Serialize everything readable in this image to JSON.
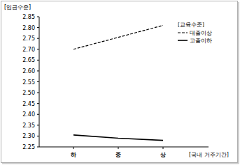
{
  "chart_data": {
    "type": "line",
    "y_label": "[임금수준]",
    "x_label": "[국내 거주기간]",
    "legend_title": "[교육수준]",
    "categories": [
      "하",
      "중",
      "상"
    ],
    "series": [
      {
        "name": "대졸이상",
        "color": "#000000",
        "line_style": "dashed",
        "values": [
          2.7,
          2.755,
          2.81
        ]
      },
      {
        "name": "고졸이하",
        "color": "#000000",
        "line_style": "solid",
        "values": [
          2.305,
          2.29,
          2.28
        ]
      }
    ],
    "ylim": [
      2.25,
      2.85
    ],
    "yticks": [
      {
        "value": 2.25,
        "label": "2.25"
      },
      {
        "value": 2.3,
        "label": "2.30"
      },
      {
        "value": 2.35,
        "label": "2.35"
      },
      {
        "value": 2.4,
        "label": "2.40"
      },
      {
        "value": 2.45,
        "label": "2.45"
      },
      {
        "value": 2.5,
        "label": "2.50"
      },
      {
        "value": 2.55,
        "label": "2.55"
      },
      {
        "value": 2.6,
        "label": "2.60"
      },
      {
        "value": 2.65,
        "label": "2.65"
      },
      {
        "value": 2.7,
        "label": "2.70"
      },
      {
        "value": 2.75,
        "label": "2.75"
      },
      {
        "value": 2.8,
        "label": "2.80"
      },
      {
        "value": 2.85,
        "label": "2.85"
      }
    ],
    "grid": false,
    "legend": "top-right"
  }
}
